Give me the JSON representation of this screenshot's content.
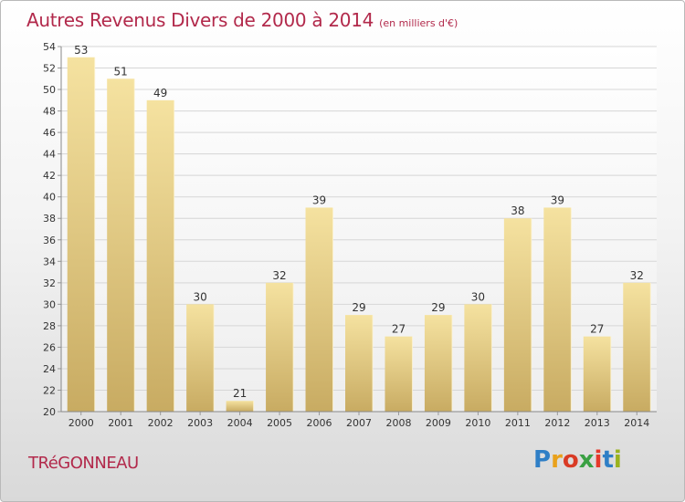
{
  "title": "Autres Revenus Divers de 2000 à 2014",
  "subtitle": "(en milliers d'€)",
  "commune": "TRéGONNEAU",
  "logo": {
    "letters": [
      "P",
      "r",
      "o",
      "x",
      "i",
      "t",
      "i"
    ],
    "colors": [
      "#2f7fc6",
      "#e9a11b",
      "#d93b25",
      "#3aa043",
      "#e6392b",
      "#2f7fc6",
      "#9ab31f"
    ]
  },
  "colors": {
    "accent": "#b2294b",
    "bar_light": "#f5e2a0",
    "bar_dark": "#c8ab62"
  },
  "chart_data": {
    "type": "bar",
    "categories": [
      "2000",
      "2001",
      "2002",
      "2003",
      "2004",
      "2005",
      "2006",
      "2007",
      "2008",
      "2009",
      "2010",
      "2011",
      "2012",
      "2013",
      "2014"
    ],
    "values": [
      53,
      51,
      49,
      30,
      21,
      32,
      39,
      29,
      27,
      29,
      30,
      38,
      39,
      27,
      32
    ],
    "ylim": [
      20,
      54
    ],
    "yticks": [
      20,
      22,
      24,
      26,
      28,
      30,
      32,
      34,
      36,
      38,
      40,
      42,
      44,
      46,
      48,
      50,
      52,
      54
    ],
    "grid": true,
    "data_labels": true
  }
}
